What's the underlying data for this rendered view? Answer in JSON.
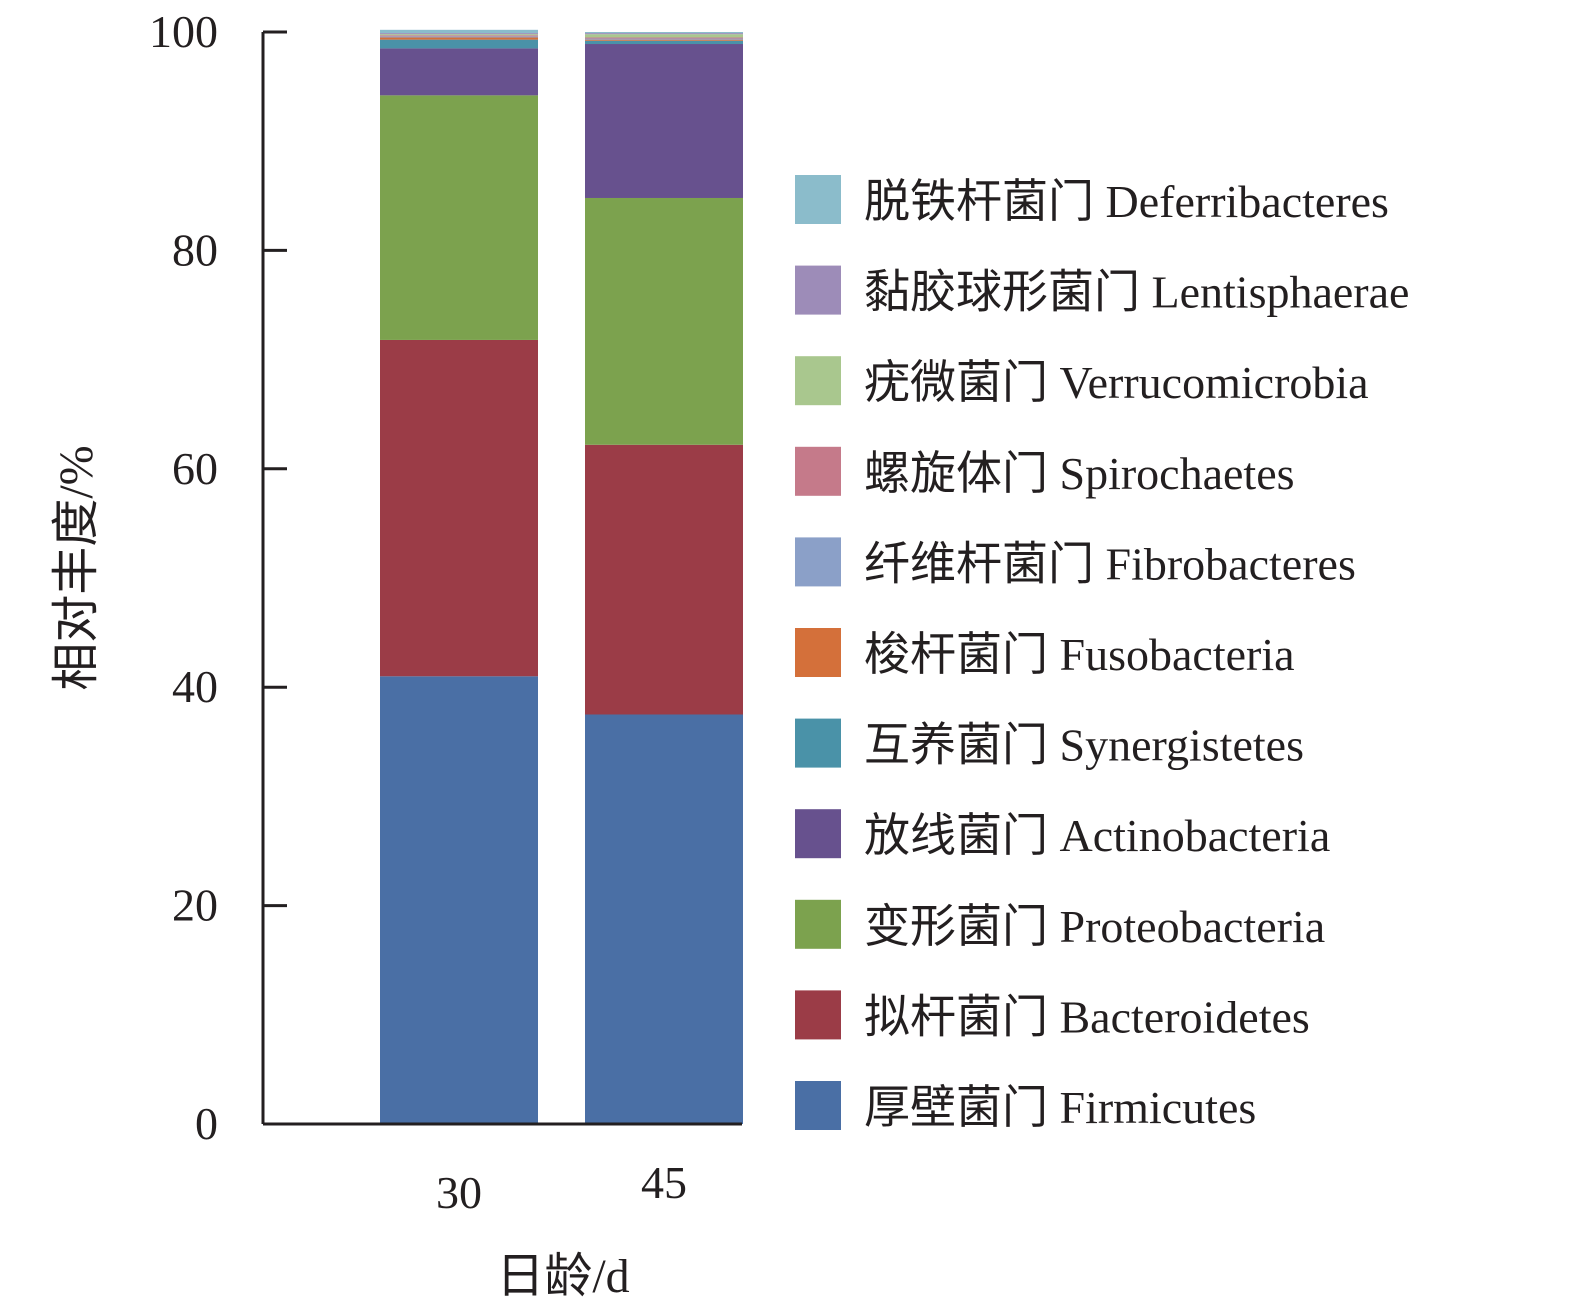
{
  "chart_data": {
    "type": "bar",
    "stacked": true,
    "xlabel": "日龄/d",
    "ylabel": "相对丰度/%",
    "ylim": [
      0,
      100
    ],
    "yticks": [
      "0",
      "20",
      "40",
      "60",
      "80",
      "100"
    ],
    "categories": [
      "30",
      "45"
    ],
    "legend_position": "right",
    "grid": false,
    "series": [
      {
        "name": "厚壁菌门 Firmicutes",
        "color": "#4a6fa5",
        "values": [
          41.0,
          37.5
        ]
      },
      {
        "name": "拟杆菌门 Bacteroidetes",
        "color": "#9b3c47",
        "values": [
          30.8,
          24.7
        ]
      },
      {
        "name": "变形菌门 Proteobacteria",
        "color": "#7ca24e",
        "values": [
          22.4,
          22.6
        ]
      },
      {
        "name": "放线菌门 Actinobacteria",
        "color": "#67518e",
        "values": [
          4.3,
          14.1
        ]
      },
      {
        "name": "互养菌门 Synergistetes",
        "color": "#4a92a8",
        "values": [
          0.8,
          0.3
        ]
      },
      {
        "name": "梭杆菌门 Fusobacteria",
        "color": "#d4703a",
        "values": [
          0.2,
          0.1
        ]
      },
      {
        "name": "纤维杆菌门 Fibrobacteres",
        "color": "#8ba0c8",
        "values": [
          0.1,
          0.1
        ]
      },
      {
        "name": "螺旋体门 Spirochaetes",
        "color": "#c57a8a",
        "values": [
          0.1,
          0.1
        ]
      },
      {
        "name": "疣微菌门 Verrucomicrobia",
        "color": "#a9c78e",
        "values": [
          0.1,
          0.3
        ]
      },
      {
        "name": "黏胶球形菌门 Lentisphaerae",
        "color": "#9d8cb8",
        "values": [
          0.1,
          0.1
        ]
      },
      {
        "name": "脱铁杆菌门 Deferribacteres",
        "color": "#8bbccb",
        "values": [
          0.3,
          0.1
        ]
      }
    ]
  }
}
